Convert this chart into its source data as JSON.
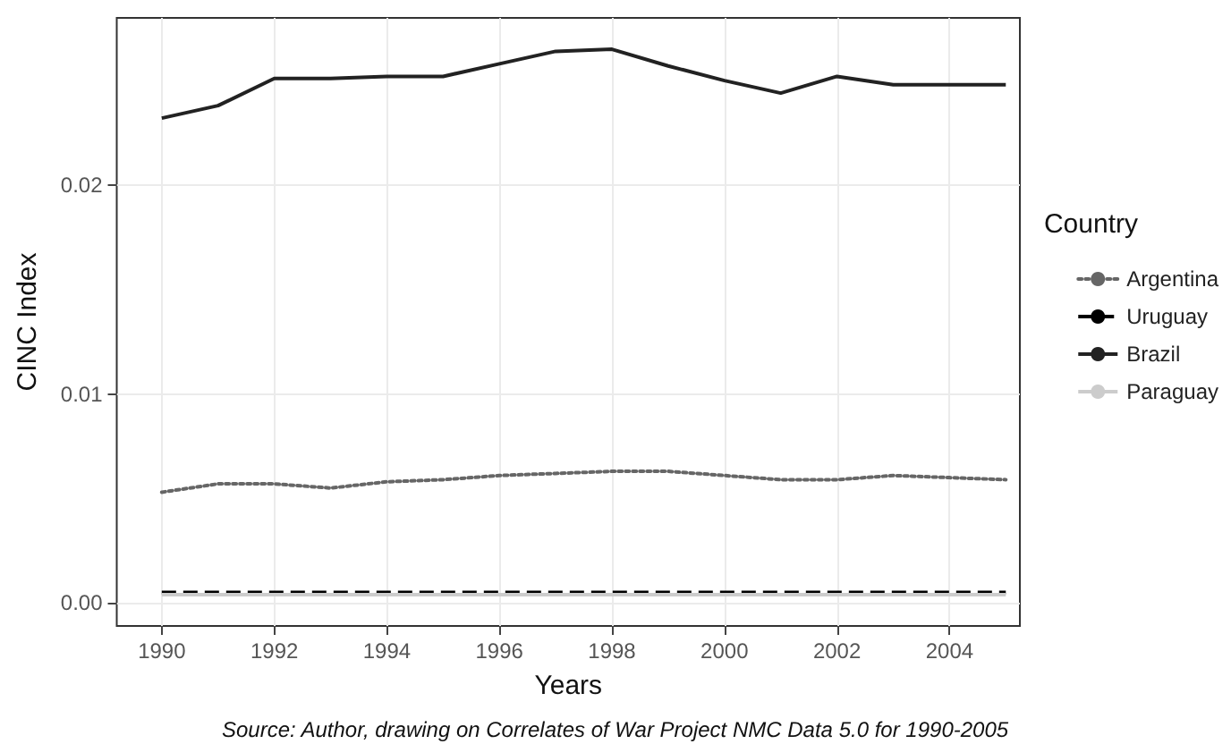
{
  "chart_data": {
    "type": "line",
    "xlabel": "Years",
    "ylabel": "CINC Index",
    "legend_title": "Country",
    "legend": "right",
    "grid": true,
    "marker": "none",
    "annotations": [
      "Source: Author, drawing on Correlates of War Project NMC Data 5.0 for 1990-2005"
    ],
    "x": [
      1990,
      1991,
      1992,
      1993,
      1994,
      1995,
      1996,
      1997,
      1998,
      1999,
      2000,
      2001,
      2002,
      2003,
      2004,
      2005
    ],
    "xlim": [
      1989.2,
      2005.25
    ],
    "xticks": [
      1990,
      1992,
      1994,
      1996,
      1998,
      2000,
      2002,
      2004
    ],
    "ylim": [
      -0.0011,
      0.028
    ],
    "yticks": [
      {
        "value": 0,
        "label": "0.00"
      },
      {
        "value": 0.01,
        "label": "0.01"
      },
      {
        "value": 0.02,
        "label": "0.02"
      }
    ],
    "series": [
      {
        "name": "Argentina",
        "color": "#666666",
        "line_style": "dotted",
        "values": [
          0.0053,
          0.0057,
          0.0057,
          0.0055,
          0.0058,
          0.0059,
          0.0061,
          0.0062,
          0.0063,
          0.0063,
          0.0061,
          0.0059,
          0.0059,
          0.0061,
          0.006,
          0.0059
        ]
      },
      {
        "name": "Uruguay",
        "color": "#000000",
        "line_style": "dashed",
        "values": [
          0.0005,
          0.0005,
          0.0005,
          0.0005,
          0.0005,
          0.0005,
          0.0005,
          0.0005,
          0.0005,
          0.0005,
          0.0005,
          0.0005,
          0.0005,
          0.0005,
          0.0005,
          0.0005
        ]
      },
      {
        "name": "Brazil",
        "color": "#222222",
        "line_style": "solid",
        "values": [
          0.0232,
          0.0238,
          0.0251,
          0.0251,
          0.0252,
          0.0252,
          0.0258,
          0.0264,
          0.0265,
          0.0257,
          0.025,
          0.0244,
          0.0252,
          0.0248,
          0.0248,
          0.0248
        ]
      },
      {
        "name": "Paraguay",
        "color": "#cccccc",
        "line_style": "solid",
        "values": [
          0.0004,
          0.0004,
          0.0004,
          0.0004,
          0.0004,
          0.0004,
          0.0004,
          0.0004,
          0.0004,
          0.0004,
          0.0004,
          0.0004,
          0.0004,
          0.0004,
          0.0004,
          0.0004
        ]
      }
    ]
  }
}
